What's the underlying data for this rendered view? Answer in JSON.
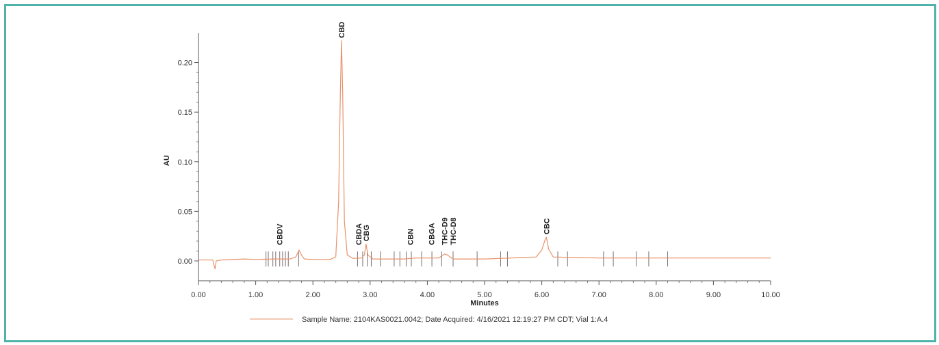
{
  "chart_data": {
    "type": "line",
    "title": "",
    "xlabel": "Minutes",
    "ylabel": "AU",
    "xlim": [
      0,
      10
    ],
    "ylim": [
      -0.02,
      0.23
    ],
    "x_ticks": [
      "0.00",
      "1.00",
      "2.00",
      "3.00",
      "4.00",
      "5.00",
      "6.00",
      "7.00",
      "8.00",
      "9.00",
      "10.00"
    ],
    "y_ticks": [
      "0.00",
      "0.05",
      "0.10",
      "0.15",
      "0.20"
    ],
    "line_color": "#e8926a",
    "series": [
      {
        "name": "",
        "x": [
          0.0,
          0.25,
          0.27,
          0.29,
          0.31,
          0.4,
          0.8,
          1.0,
          1.3,
          1.6,
          1.7,
          1.76,
          1.8,
          1.85,
          2.0,
          2.3,
          2.4,
          2.45,
          2.48,
          2.5,
          2.52,
          2.55,
          2.6,
          2.7,
          2.85,
          2.9,
          2.93,
          2.96,
          3.05,
          3.6,
          3.8,
          4.2,
          4.3,
          4.35,
          4.45,
          5.0,
          5.9,
          6.0,
          6.05,
          6.08,
          6.12,
          6.2,
          7.0,
          8.0,
          9.0,
          10.0
        ],
        "values": [
          0.001,
          0.001,
          -0.004,
          -0.008,
          0.0,
          0.001,
          0.002,
          0.0015,
          0.002,
          0.002,
          0.004,
          0.011,
          0.006,
          0.002,
          0.0015,
          0.0015,
          0.004,
          0.06,
          0.17,
          0.222,
          0.17,
          0.04,
          0.006,
          0.0025,
          0.003,
          0.006,
          0.017,
          0.006,
          0.002,
          0.002,
          0.003,
          0.003,
          0.007,
          0.006,
          0.002,
          0.002,
          0.004,
          0.011,
          0.02,
          0.024,
          0.012,
          0.004,
          0.003,
          0.003,
          0.003,
          0.003
        ]
      }
    ],
    "peaks": [
      {
        "label": "CBDV",
        "x": 1.42,
        "y": 0.006
      },
      {
        "label": "CBD",
        "x": 2.5,
        "y": 0.222
      },
      {
        "label": "CBDA",
        "x": 2.8,
        "y": 0.005
      },
      {
        "label": "CBG",
        "x": 2.93,
        "y": 0.017
      },
      {
        "label": "CBN",
        "x": 3.7,
        "y": 0.003
      },
      {
        "label": "CBGA",
        "x": 4.07,
        "y": 0.003
      },
      {
        "label": "THC-D9",
        "x": 4.3,
        "y": 0.007
      },
      {
        "label": "THC-D8",
        "x": 4.45,
        "y": 0.002
      },
      {
        "label": "CBC",
        "x": 6.08,
        "y": 0.024
      }
    ],
    "integration_marks": [
      1.18,
      1.22,
      1.3,
      1.35,
      1.42,
      1.47,
      1.52,
      1.57,
      1.75,
      2.78,
      2.87,
      2.95,
      3.02,
      3.18,
      3.42,
      3.52,
      3.63,
      3.72,
      3.9,
      4.08,
      4.25,
      4.45,
      4.87,
      5.28,
      5.4,
      6.28,
      6.45,
      7.08,
      7.25,
      7.65,
      7.87,
      8.2
    ],
    "legend": {
      "position": "bottom",
      "text": "Sample Name: 2104KAS0021.0042;  Date Acquired: 4/16/2021 12:19:27 PM CDT; Vial 1:A.4"
    }
  }
}
